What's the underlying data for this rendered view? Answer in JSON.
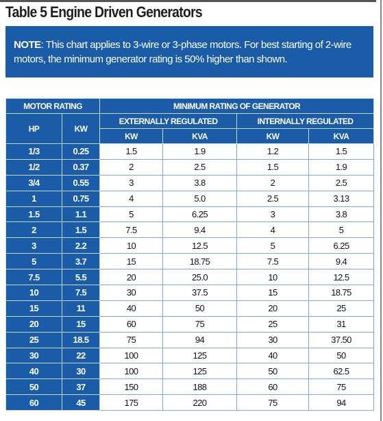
{
  "title": "Table 5 Engine Driven Generators",
  "note": {
    "label": "NOTE",
    "text": ": This chart applies to 3-wire or 3-phase motors. For best starting of 2-wire motors, the minimum generator rating is 50% higher than shown."
  },
  "table": {
    "group_headers": [
      "MOTOR RATING",
      "MINIMUM RATING OF GENERATOR"
    ],
    "sub_headers": [
      "EXTERNALLY REGULATED",
      "INTERNALLY REGULATED"
    ],
    "motor_headers": [
      "HP",
      "KW"
    ],
    "column_headers": [
      "KW",
      "KVA",
      "KW",
      "KVA"
    ],
    "rows": [
      [
        "1/3",
        "0.25",
        "1.5",
        "1.9",
        "1.2",
        "1.5"
      ],
      [
        "1/2",
        "0.37",
        "2",
        "2.5",
        "1.5",
        "1.9"
      ],
      [
        "3/4",
        "0.55",
        "3",
        "3.8",
        "2",
        "2.5"
      ],
      [
        "1",
        "0.75",
        "4",
        "5.0",
        "2.5",
        "3.13"
      ],
      [
        "1.5",
        "1.1",
        "5",
        "6.25",
        "3",
        "3.8"
      ],
      [
        "2",
        "1.5",
        "7.5",
        "9.4",
        "4",
        "5"
      ],
      [
        "3",
        "2.2",
        "10",
        "12.5",
        "5",
        "6.25"
      ],
      [
        "5",
        "3.7",
        "15",
        "18.75",
        "7.5",
        "9.4"
      ],
      [
        "7.5",
        "5.5",
        "20",
        "25.0",
        "10",
        "12.5"
      ],
      [
        "10",
        "7.5",
        "30",
        "37.5",
        "15",
        "18.75"
      ],
      [
        "15",
        "11",
        "40",
        "50",
        "20",
        "25"
      ],
      [
        "20",
        "15",
        "60",
        "75",
        "25",
        "31"
      ],
      [
        "25",
        "18.5",
        "75",
        "94",
        "30",
        "37.50"
      ],
      [
        "30",
        "22",
        "100",
        "125",
        "40",
        "50"
      ],
      [
        "40",
        "30",
        "100",
        "125",
        "50",
        "62.5"
      ],
      [
        "50",
        "37",
        "150",
        "188",
        "60",
        "75"
      ],
      [
        "60",
        "45",
        "175",
        "220",
        "75",
        "94"
      ]
    ]
  }
}
